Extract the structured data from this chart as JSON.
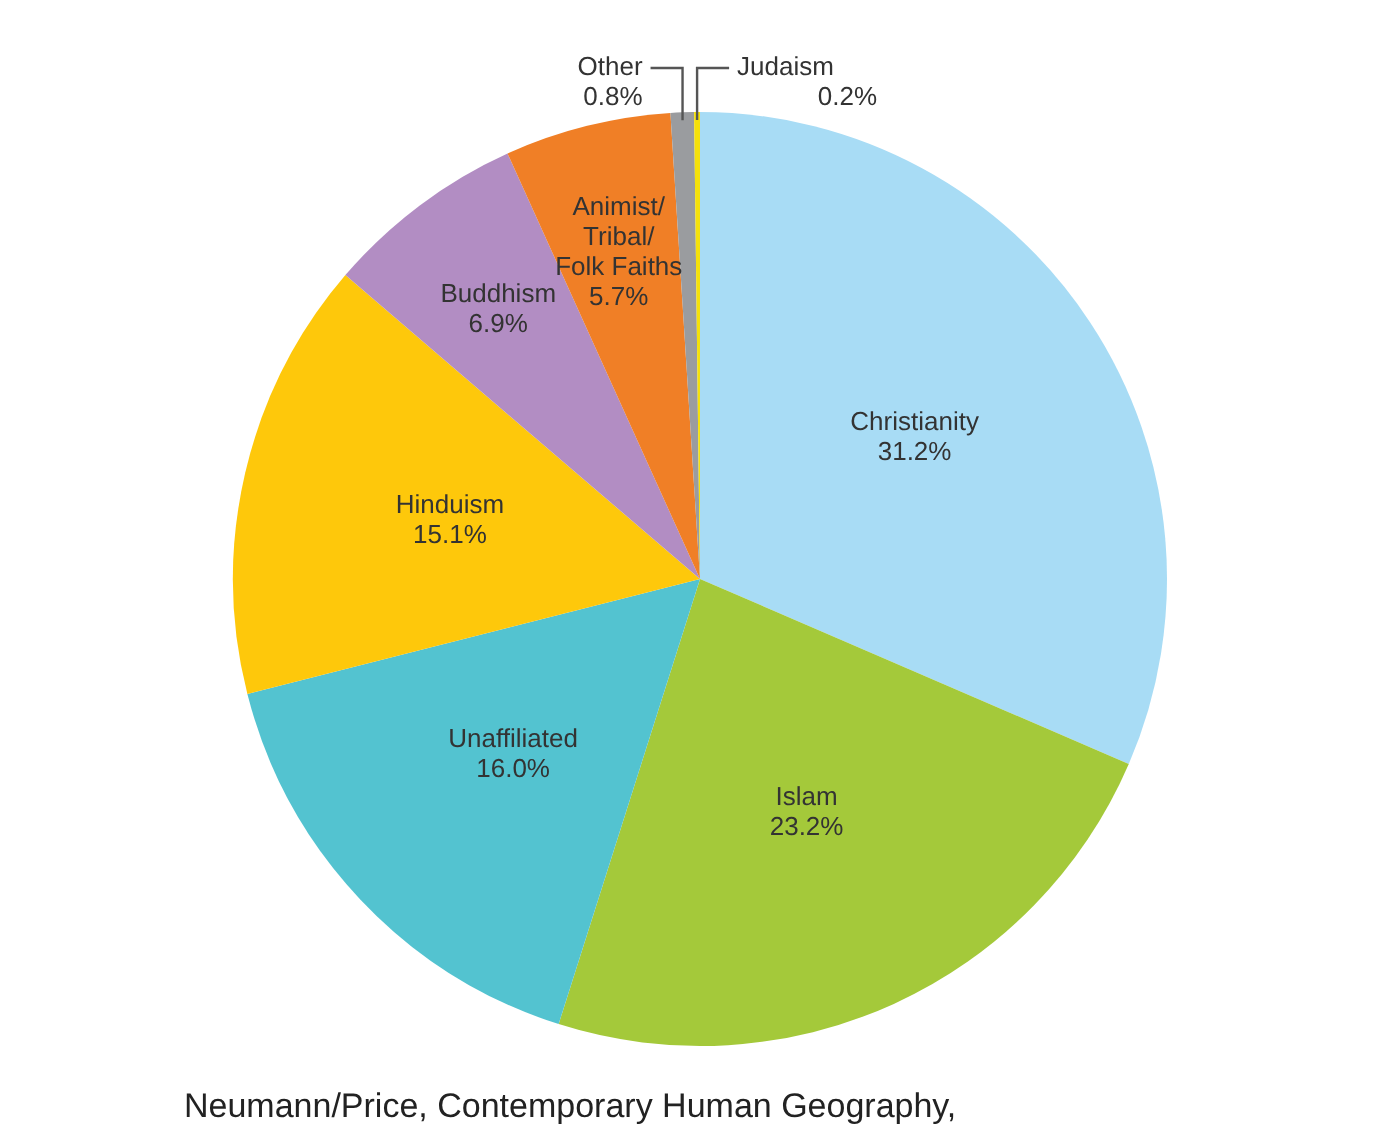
{
  "chart_data": {
    "type": "pie",
    "categories": [
      "Christianity",
      "Islam",
      "Unaffiliated",
      "Hinduism",
      "Buddhism",
      "Animist/Tribal/Folk Faiths",
      "Other",
      "Judaism"
    ],
    "values": [
      31.2,
      23.2,
      16.0,
      15.1,
      6.9,
      5.7,
      0.8,
      0.2
    ],
    "colors": [
      "#a8dcf5",
      "#a4c93a",
      "#53c3d0",
      "#fec80b",
      "#b28dc3",
      "#f07f26",
      "#9a9c9f",
      "#f5e10b"
    ],
    "value_labels": [
      "31.2%",
      "23.2%",
      "16.0%",
      "15.1%",
      "6.9%",
      "5.7%",
      "0.8%",
      "0.2%"
    ],
    "annotations": [
      "Neumann/Price, Contemporary Human Geography,"
    ]
  }
}
